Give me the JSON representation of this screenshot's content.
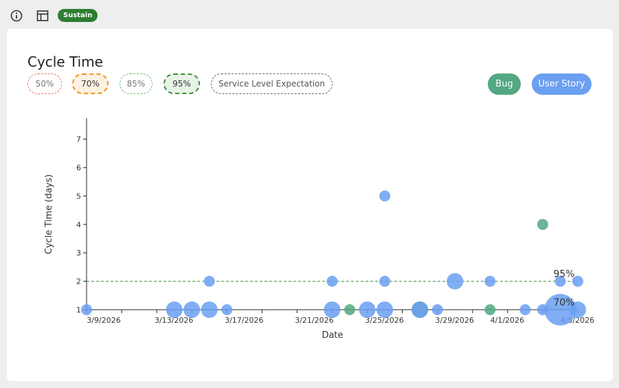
{
  "header": {
    "info_icon": "info-icon",
    "table_icon": "table-icon",
    "badge": "Sustain"
  },
  "card": {
    "title": "Cycle Time",
    "percentile_filters": [
      "50%",
      "70%",
      "85%",
      "95%"
    ],
    "sle_label": "Service Level Expectation",
    "legend": {
      "bug": "Bug",
      "user_story": "User Story"
    }
  },
  "colors": {
    "bug": "#52a882",
    "user_story": "#6a9ff2",
    "badge": "#2e7d32",
    "p50": "#e5756a",
    "p70": "#f0941c",
    "p85": "#6cbf6c",
    "p95": "#3a8f3a"
  },
  "chart_data": {
    "type": "scatter",
    "xlabel": "Date",
    "ylabel": "Cycle Time (days)",
    "x_ticks": [
      "3/9/2026",
      "3/13/2026",
      "3/17/2026",
      "3/21/2026",
      "3/25/2026",
      "3/29/2026",
      "4/1/2026",
      "4/5/2026"
    ],
    "y_ticks": [
      1,
      2,
      3,
      4,
      5,
      6,
      7
    ],
    "xlim": [
      "2026-03-09",
      "2026-04-06"
    ],
    "ylim": [
      1,
      7.7
    ],
    "percentile_lines": [
      {
        "label": "95%",
        "value": 2,
        "style": "dashed",
        "color": "#3a8f3a"
      },
      {
        "label": "70%",
        "value": 1,
        "style": "dashed",
        "color": "#f0941c"
      }
    ],
    "series": [
      {
        "name": "Bug",
        "color": "#52a882",
        "points": [
          {
            "date": "2026-03-24",
            "y": 1,
            "count": 1
          },
          {
            "date": "2026-03-28",
            "y": 1,
            "count": 2
          },
          {
            "date": "2026-04-01",
            "y": 1,
            "count": 1
          },
          {
            "date": "2026-04-04",
            "y": 4,
            "count": 1
          }
        ]
      },
      {
        "name": "User Story",
        "color": "#6a9ff2",
        "points": [
          {
            "date": "2026-03-09",
            "y": 1,
            "count": 1
          },
          {
            "date": "2026-03-14",
            "y": 1,
            "count": 2
          },
          {
            "date": "2026-03-15",
            "y": 1,
            "count": 2
          },
          {
            "date": "2026-03-16",
            "y": 1,
            "count": 2
          },
          {
            "date": "2026-03-16",
            "y": 2,
            "count": 1
          },
          {
            "date": "2026-03-17",
            "y": 1,
            "count": 1
          },
          {
            "date": "2026-03-23",
            "y": 1,
            "count": 2
          },
          {
            "date": "2026-03-23",
            "y": 2,
            "count": 1
          },
          {
            "date": "2026-03-25",
            "y": 1,
            "count": 2
          },
          {
            "date": "2026-03-26",
            "y": 1,
            "count": 2
          },
          {
            "date": "2026-03-26",
            "y": 2,
            "count": 1
          },
          {
            "date": "2026-03-26",
            "y": 5,
            "count": 1
          },
          {
            "date": "2026-03-28",
            "y": 1,
            "count": 2
          },
          {
            "date": "2026-03-29",
            "y": 1,
            "count": 1
          },
          {
            "date": "2026-03-30",
            "y": 2,
            "count": 2
          },
          {
            "date": "2026-04-01",
            "y": 2,
            "count": 1
          },
          {
            "date": "2026-04-03",
            "y": 1,
            "count": 1
          },
          {
            "date": "2026-04-04",
            "y": 1,
            "count": 1
          },
          {
            "date": "2026-04-05",
            "y": 1,
            "count": 4
          },
          {
            "date": "2026-04-05",
            "y": 2,
            "count": 1
          },
          {
            "date": "2026-04-06",
            "y": 1,
            "count": 2
          },
          {
            "date": "2026-04-06",
            "y": 2,
            "count": 1
          }
        ]
      }
    ]
  }
}
